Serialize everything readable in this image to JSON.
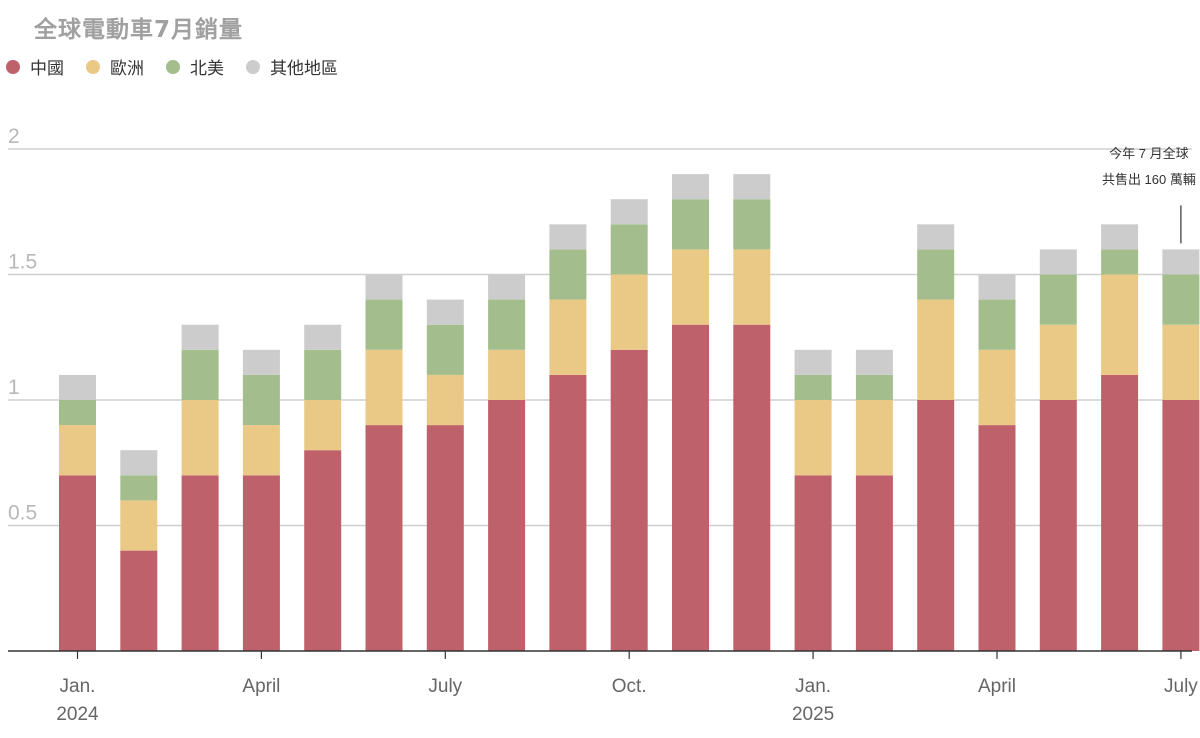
{
  "chart_data": {
    "type": "bar",
    "stacked": true,
    "title": "全球電動車7月銷量",
    "series": [
      {
        "name": "中國",
        "color": "#bf616a",
        "values": [
          0.7,
          0.4,
          0.7,
          0.7,
          0.8,
          0.9,
          0.9,
          1.0,
          1.1,
          1.2,
          1.3,
          1.3,
          0.7,
          0.7,
          1.0,
          0.9,
          1.0,
          1.1,
          1.0
        ]
      },
      {
        "name": "歐洲",
        "color": "#eac987",
        "values": [
          0.2,
          0.2,
          0.3,
          0.2,
          0.2,
          0.3,
          0.2,
          0.2,
          0.3,
          0.3,
          0.3,
          0.3,
          0.3,
          0.3,
          0.4,
          0.3,
          0.3,
          0.4,
          0.3
        ]
      },
      {
        "name": "北美",
        "color": "#a3be8c",
        "values": [
          0.1,
          0.1,
          0.2,
          0.2,
          0.2,
          0.2,
          0.2,
          0.2,
          0.2,
          0.2,
          0.2,
          0.2,
          0.1,
          0.1,
          0.2,
          0.2,
          0.2,
          0.1,
          0.2
        ]
      },
      {
        "name": "其他地區",
        "color": "#cccccc",
        "values": [
          0.1,
          0.1,
          0.1,
          0.1,
          0.1,
          0.1,
          0.1,
          0.1,
          0.1,
          0.1,
          0.1,
          0.1,
          0.1,
          0.1,
          0.1,
          0.1,
          0.1,
          0.1,
          0.1
        ]
      }
    ],
    "x_ticks": [
      {
        "index": 0,
        "label": "Jan.",
        "sub": "2024"
      },
      {
        "index": 3,
        "label": "April",
        "sub": ""
      },
      {
        "index": 6,
        "label": "July",
        "sub": ""
      },
      {
        "index": 9,
        "label": "Oct.",
        "sub": ""
      },
      {
        "index": 12,
        "label": "Jan.",
        "sub": "2025"
      },
      {
        "index": 15,
        "label": "April",
        "sub": ""
      },
      {
        "index": 18,
        "label": "July",
        "sub": ""
      }
    ],
    "ylim": [
      0,
      2
    ],
    "y_ticks": [
      {
        "value": 0.5,
        "label": "0.5"
      },
      {
        "value": 1,
        "label": "1"
      },
      {
        "value": 1.5,
        "label": "1.5"
      },
      {
        "value": 2,
        "label": "2"
      }
    ],
    "grid": true,
    "legend_position": "top-left",
    "annotation": {
      "bar_index": 18,
      "lines": [
        "今年 7 月全球",
        "共售出 160 萬輛"
      ]
    }
  }
}
